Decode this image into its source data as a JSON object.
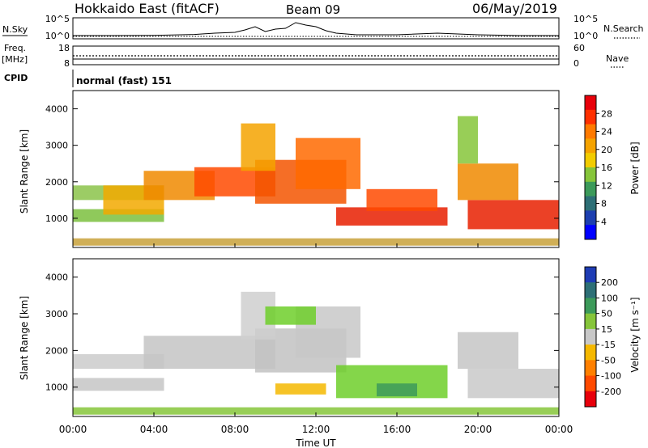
{
  "header": {
    "station": "Hokkaido East (fitACF)",
    "beam": "Beam 09",
    "date": "06/May/2019"
  },
  "top_panel": {
    "left_label": "N.Sky",
    "right_label": "N.Search",
    "left_ticks": [
      "10^5",
      "10^0"
    ],
    "right_ticks": [
      "10^5",
      "10^0"
    ]
  },
  "freq_panel": {
    "left_label_1": "Freq.",
    "left_label_2": "[MHz]",
    "right_label": "Nave",
    "left_ticks": [
      "18",
      "8"
    ],
    "right_ticks": [
      "60",
      "0"
    ]
  },
  "cpid": {
    "label": "CPID",
    "value": "normal (fast) 151"
  },
  "x_axis": {
    "ticks": [
      "00:00",
      "04:00",
      "08:00",
      "12:00",
      "16:00",
      "20:00",
      "00:00"
    ],
    "label": "Time UT"
  },
  "chart_data": [
    {
      "type": "heatmap",
      "name": "power",
      "ylabel": "Slant Range [km]",
      "yticks": [
        1000,
        2000,
        3000,
        4000
      ],
      "ylim": [
        200,
        4500
      ],
      "xlim_hours": [
        0,
        24
      ],
      "colorbar": {
        "label": "Power [dB]",
        "ticks": [
          "28",
          "24",
          "20",
          "16",
          "12",
          "8",
          "4"
        ],
        "colors": [
          "#e8000b",
          "#ff3000",
          "#ff7a00",
          "#f5a300",
          "#f2cc00",
          "#86c53a",
          "#3c9a5a",
          "#2d6f76",
          "#1d3fb0",
          "#0000ff"
        ]
      },
      "bands": [
        {
          "t0": 0.0,
          "t1": 4.5,
          "r0": 900,
          "r1": 1250,
          "color": "#7bbf3e"
        },
        {
          "t0": 0.0,
          "t1": 4.5,
          "r0": 1500,
          "r1": 1900,
          "color": "#8bc34a"
        },
        {
          "t0": 1.5,
          "t1": 4.5,
          "r0": 1100,
          "r1": 1900,
          "color": "#f2a900"
        },
        {
          "t0": 3.5,
          "t1": 7.0,
          "r0": 1500,
          "r1": 2300,
          "color": "#f08a00"
        },
        {
          "t0": 6.0,
          "t1": 10.0,
          "r0": 1600,
          "r1": 2400,
          "color": "#ff4a00"
        },
        {
          "t0": 9.0,
          "t1": 13.5,
          "r0": 1400,
          "r1": 2600,
          "color": "#f35500"
        },
        {
          "t0": 11.0,
          "t1": 14.2,
          "r0": 1800,
          "r1": 3200,
          "color": "#ff6a00"
        },
        {
          "t0": 8.3,
          "t1": 10.0,
          "r0": 2300,
          "r1": 3600,
          "color": "#f5a300"
        },
        {
          "t0": 13.0,
          "t1": 18.5,
          "r0": 800,
          "r1": 1300,
          "color": "#e81e00"
        },
        {
          "t0": 14.5,
          "t1": 18.0,
          "r0": 1200,
          "r1": 1800,
          "color": "#ff4a00"
        },
        {
          "t0": 19.5,
          "t1": 24.0,
          "r0": 700,
          "r1": 1500,
          "color": "#e82000"
        },
        {
          "t0": 19.0,
          "t1": 22.0,
          "r0": 1500,
          "r1": 2500,
          "color": "#f08a00"
        },
        {
          "t0": 19.0,
          "t1": 20.0,
          "r0": 2500,
          "r1": 3800,
          "color": "#86c53a"
        },
        {
          "t0": 0.0,
          "t1": 24.0,
          "r0": 250,
          "r1": 450,
          "color": "#c8a13a"
        }
      ]
    },
    {
      "type": "heatmap",
      "name": "velocity",
      "ylabel": "Slant Range [km]",
      "yticks": [
        1000,
        2000,
        3000,
        4000
      ],
      "ylim": [
        200,
        4500
      ],
      "xlim_hours": [
        0,
        24
      ],
      "colorbar": {
        "label": "Velocity [m s⁻¹]",
        "ticks": [
          "200",
          "100",
          "50",
          "15",
          "-15",
          "-50",
          "-100",
          "-200"
        ],
        "colors": [
          "#1e3cb4",
          "#2d6f76",
          "#3c9a5a",
          "#86c53a",
          "#c8c8c8",
          "#f5b800",
          "#ff8000",
          "#ff4a00",
          "#e8000b"
        ]
      },
      "bands": [
        {
          "t0": 0.0,
          "t1": 4.5,
          "r0": 900,
          "r1": 1250,
          "color": "#c6c6c6"
        },
        {
          "t0": 0.0,
          "t1": 4.5,
          "r0": 1500,
          "r1": 1900,
          "color": "#cbcbcb"
        },
        {
          "t0": 3.5,
          "t1": 10.0,
          "r0": 1500,
          "r1": 2400,
          "color": "#c4c4c4"
        },
        {
          "t0": 9.0,
          "t1": 13.5,
          "r0": 1400,
          "r1": 2600,
          "color": "#c2c2c2"
        },
        {
          "t0": 11.0,
          "t1": 14.2,
          "r0": 1800,
          "r1": 3200,
          "color": "#c8c8c8"
        },
        {
          "t0": 8.3,
          "t1": 10.0,
          "r0": 2300,
          "r1": 3600,
          "color": "#cfcfcf"
        },
        {
          "t0": 13.0,
          "t1": 18.5,
          "r0": 700,
          "r1": 1600,
          "color": "#6fcf2a"
        },
        {
          "t0": 15.0,
          "t1": 17.0,
          "r0": 750,
          "r1": 1100,
          "color": "#3c9a5a"
        },
        {
          "t0": 19.5,
          "t1": 24.0,
          "r0": 700,
          "r1": 1500,
          "color": "#c9c9c9"
        },
        {
          "t0": 19.0,
          "t1": 22.0,
          "r0": 1500,
          "r1": 2500,
          "color": "#c6c6c6"
        },
        {
          "t0": 9.5,
          "t1": 12.0,
          "r0": 2700,
          "r1": 3200,
          "color": "#6fcf2a"
        },
        {
          "t0": 0.0,
          "t1": 24.0,
          "r0": 250,
          "r1": 450,
          "color": "#86c53a"
        },
        {
          "t0": 10.0,
          "t1": 12.5,
          "r0": 800,
          "r1": 1100,
          "color": "#f5b800"
        }
      ]
    }
  ],
  "sky_noise": {
    "hours": [
      0,
      2,
      4,
      6,
      7,
      8,
      8.5,
      9,
      9.5,
      10,
      10.5,
      11,
      11.5,
      12,
      12.5,
      13,
      14,
      16,
      18,
      19,
      20,
      22,
      24
    ],
    "level": [
      0.05,
      0.05,
      0.06,
      0.12,
      0.2,
      0.25,
      0.4,
      0.6,
      0.3,
      0.45,
      0.5,
      0.85,
      0.7,
      0.6,
      0.35,
      0.2,
      0.1,
      0.1,
      0.2,
      0.15,
      0.1,
      0.05,
      0.05
    ]
  }
}
